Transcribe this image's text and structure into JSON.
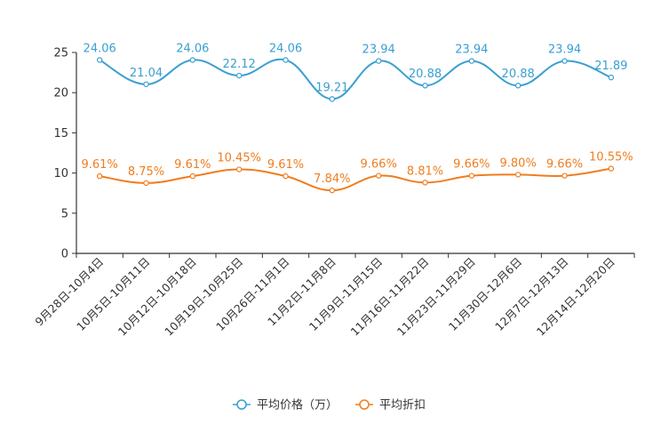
{
  "chart_data": {
    "type": "line",
    "categories": [
      "9月28日-10月4日",
      "10月5日-10月11日",
      "10月12日-10月18日",
      "10月19日-10月25日",
      "10月26日-11月1日",
      "11月2日-11月8日",
      "11月9日-11月15日",
      "11月16日-11月22日",
      "11月23日-11月29日",
      "11月30日-12月6日",
      "12月7日-12月13日",
      "12月14日-12月20日"
    ],
    "y_ticks": [
      "0",
      "5",
      "10",
      "15",
      "20",
      "25"
    ],
    "ylim": [
      0,
      25
    ],
    "series": [
      {
        "name": "平均价格（万）",
        "color": "#3a9fd1",
        "values": [
          24.06,
          21.04,
          24.06,
          22.12,
          24.06,
          19.21,
          23.94,
          20.88,
          23.94,
          20.88,
          23.94,
          21.89
        ],
        "labels": [
          "24.06",
          "21.04",
          "24.06",
          "22.12",
          "24.06",
          "19.21",
          "23.94",
          "20.88",
          "23.94",
          "20.88",
          "23.94",
          "21.89"
        ]
      },
      {
        "name": "平均折扣",
        "color": "#f07d1f",
        "values": [
          9.61,
          8.75,
          9.61,
          10.45,
          9.61,
          7.84,
          9.66,
          8.81,
          9.66,
          9.8,
          9.66,
          10.55
        ],
        "labels": [
          "9.61%",
          "8.75%",
          "9.61%",
          "10.45%",
          "9.61%",
          "7.84%",
          "9.66%",
          "8.81%",
          "9.66%",
          "9.80%",
          "9.66%",
          "10.55%"
        ]
      }
    ],
    "legend_position": "bottom-center"
  }
}
